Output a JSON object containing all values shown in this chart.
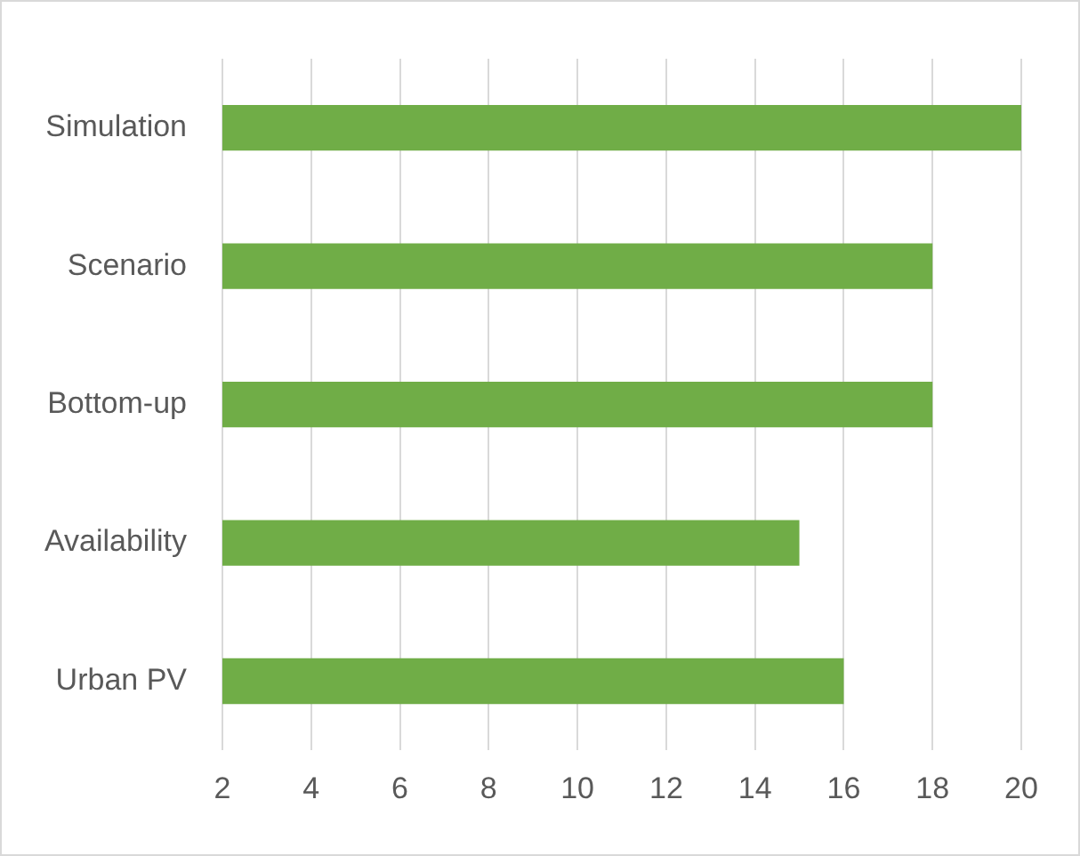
{
  "chart_data": {
    "type": "bar",
    "orientation": "horizontal",
    "categories": [
      "Simulation",
      "Scenario",
      "Bottom-up",
      "Availability",
      "Urban PV"
    ],
    "values": [
      20,
      18,
      18,
      15,
      16
    ],
    "color": "#70ad47",
    "xlim": [
      2,
      20
    ],
    "xticks": [
      2,
      4,
      6,
      8,
      10,
      12,
      14,
      16,
      18,
      20
    ],
    "grid": "x"
  }
}
